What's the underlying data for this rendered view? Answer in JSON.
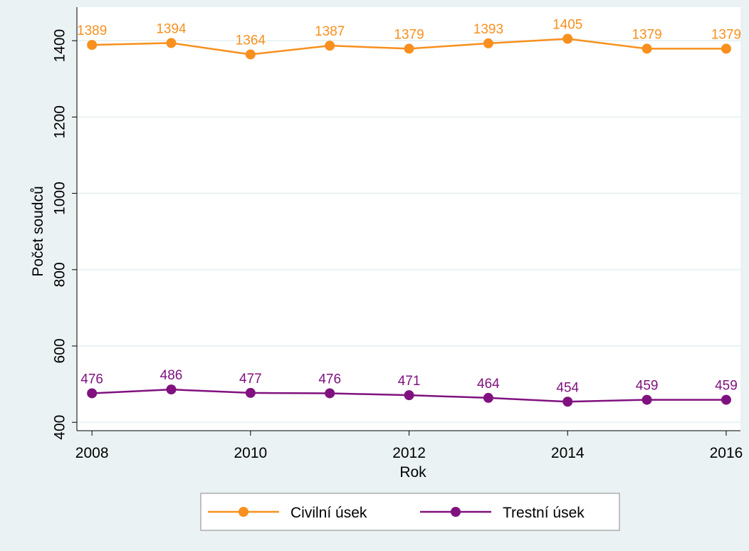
{
  "chart_data": {
    "type": "line",
    "x_label": "Rok",
    "y_label": "Počet soudců",
    "x": [
      2008,
      2009,
      2010,
      2011,
      2012,
      2013,
      2014,
      2015,
      2016
    ],
    "series": [
      {
        "name": "Civilní úsek",
        "color": "#f7901e",
        "values": [
          1389,
          1394,
          1364,
          1387,
          1379,
          1393,
          1405,
          1379,
          1379
        ]
      },
      {
        "name": "Trestní úsek",
        "color": "#80127f",
        "values": [
          476,
          486,
          477,
          476,
          471,
          464,
          454,
          459,
          459
        ]
      }
    ],
    "xlim": [
      2007.81,
      2016.18
    ],
    "xticks": [
      2008,
      2010,
      2012,
      2014,
      2016
    ],
    "ylim": [
      378,
      1488
    ],
    "yticks": [
      400,
      600,
      800,
      1000,
      1200,
      1400
    ],
    "grid": true,
    "legend": "bottom"
  }
}
